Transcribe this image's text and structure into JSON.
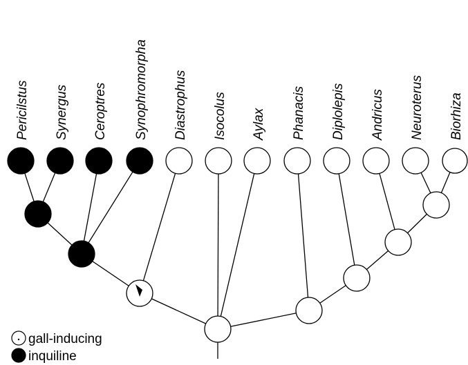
{
  "taxa": [
    {
      "name": "Pericilstus",
      "state": "inquiline"
    },
    {
      "name": "Synergus",
      "state": "inquiline"
    },
    {
      "name": "Ceroptres",
      "state": "inquiline"
    },
    {
      "name": "Synophromorpha",
      "state": "inquiline"
    },
    {
      "name": "Diastrophus",
      "state": "gall-inducing"
    },
    {
      "name": "Isocolus",
      "state": "gall-inducing"
    },
    {
      "name": "Aylax",
      "state": "gall-inducing"
    },
    {
      "name": "Phanacis",
      "state": "gall-inducing"
    },
    {
      "name": "Diplolepis",
      "state": "gall-inducing"
    },
    {
      "name": "Andricus",
      "state": "gall-inducing"
    },
    {
      "name": "Neuroterus",
      "state": "gall-inducing"
    },
    {
      "name": "Biorhiza",
      "state": "gall-inducing"
    }
  ],
  "legend": {
    "gall_label": "gall-inducing",
    "inquiline_label": "inquiline"
  },
  "colors": {
    "inquiline": "#000000",
    "gall-inducing": "#ffffff",
    "stroke": "#000000"
  }
}
